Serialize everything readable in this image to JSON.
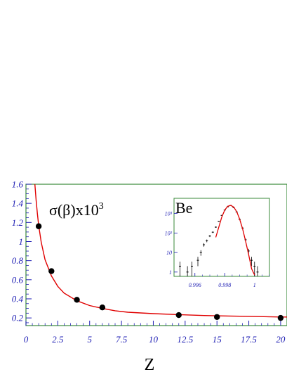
{
  "chart_data": [
    {
      "type": "scatter",
      "title": "",
      "xlabel": "Z",
      "ylabel": "",
      "annotation": "σ(β)x10",
      "annotation_superscript": "3",
      "xlim": [
        0,
        20.5
      ],
      "ylim": [
        0.12,
        1.6
      ],
      "x_ticks": [
        0,
        2.5,
        5,
        7.5,
        10,
        12.5,
        15,
        17.5,
        20
      ],
      "x_tick_labels": [
        "0",
        "2.5",
        "5",
        "7.5",
        "10",
        "12.5",
        "15",
        "17.5",
        "20"
      ],
      "y_ticks": [
        0.2,
        0.4,
        0.6,
        0.8,
        1,
        1.2,
        1.4,
        1.6
      ],
      "y_tick_labels": [
        "0.2",
        "0.4",
        "0.6",
        "0.8",
        "1",
        "1.2",
        "1.4",
        "1.6"
      ],
      "grid": false,
      "series": [
        {
          "type": "scatter",
          "x": [
            1,
            2,
            4,
            6,
            12,
            15,
            20
          ],
          "y": [
            1.16,
            0.69,
            0.39,
            0.31,
            0.23,
            0.21,
            0.2
          ]
        },
        {
          "type": "line",
          "x": [
            0.7,
            0.8,
            0.9,
            1,
            1.2,
            1.5,
            2,
            2.5,
            3,
            4,
            5,
            6,
            7,
            8,
            10,
            12,
            14,
            16,
            18,
            20,
            20.5
          ],
          "y": [
            1.6,
            1.43,
            1.29,
            1.17,
            0.99,
            0.81,
            0.64,
            0.53,
            0.46,
            0.38,
            0.33,
            0.3,
            0.275,
            0.26,
            0.245,
            0.235,
            0.225,
            0.22,
            0.215,
            0.21,
            0.21
          ]
        }
      ],
      "colors": {
        "points": "#000000",
        "fit_curve": "#e00000",
        "frame": "#3a8a3a",
        "ticks": "#1f1fb4"
      }
    },
    {
      "type": "line",
      "title": "",
      "annotation": "Be",
      "y_scale": "log",
      "xlim": [
        0.9946,
        1.001
      ],
      "ylim": [
        0.6,
        6000
      ],
      "x_ticks": [
        0.996,
        0.998,
        1
      ],
      "x_tick_labels": [
        "0.996",
        "0.998",
        "1"
      ],
      "y_ticks": [
        1,
        10,
        100,
        1000
      ],
      "y_tick_labels": [
        "1",
        "10",
        "10²",
        "10³"
      ],
      "series": [
        {
          "type": "histogram",
          "x": [
            0.995,
            0.9955,
            0.9958,
            0.9962,
            0.9964,
            0.9966,
            0.9968,
            0.997,
            0.9972,
            0.9974,
            0.9976,
            0.9978,
            0.998,
            0.9982,
            0.9984,
            0.9986,
            0.9988,
            0.999,
            0.9992,
            0.9994,
            0.9996,
            0.9998,
            1.0,
            1.0002
          ],
          "y": [
            2,
            1,
            2,
            4,
            10,
            25,
            40,
            70,
            110,
            200,
            400,
            800,
            1500,
            2200,
            2600,
            2000,
            1200,
            500,
            180,
            45,
            12,
            4,
            2,
            1
          ]
        },
        {
          "type": "line",
          "x": [
            0.9974,
            0.9976,
            0.9978,
            0.998,
            0.9982,
            0.9984,
            0.9986,
            0.9988,
            0.999,
            0.9992,
            0.9994,
            0.9996,
            0.9998,
            1.0
          ],
          "y": [
            60,
            200,
            650,
            1500,
            2350,
            2600,
            2150,
            1250,
            520,
            160,
            38,
            8,
            1.5,
            0.7
          ]
        }
      ],
      "colors": {
        "data": "#000000",
        "fit_curve": "#e00000",
        "frame": "#3a8a3a",
        "ticks": "#1f1fb4"
      }
    }
  ]
}
